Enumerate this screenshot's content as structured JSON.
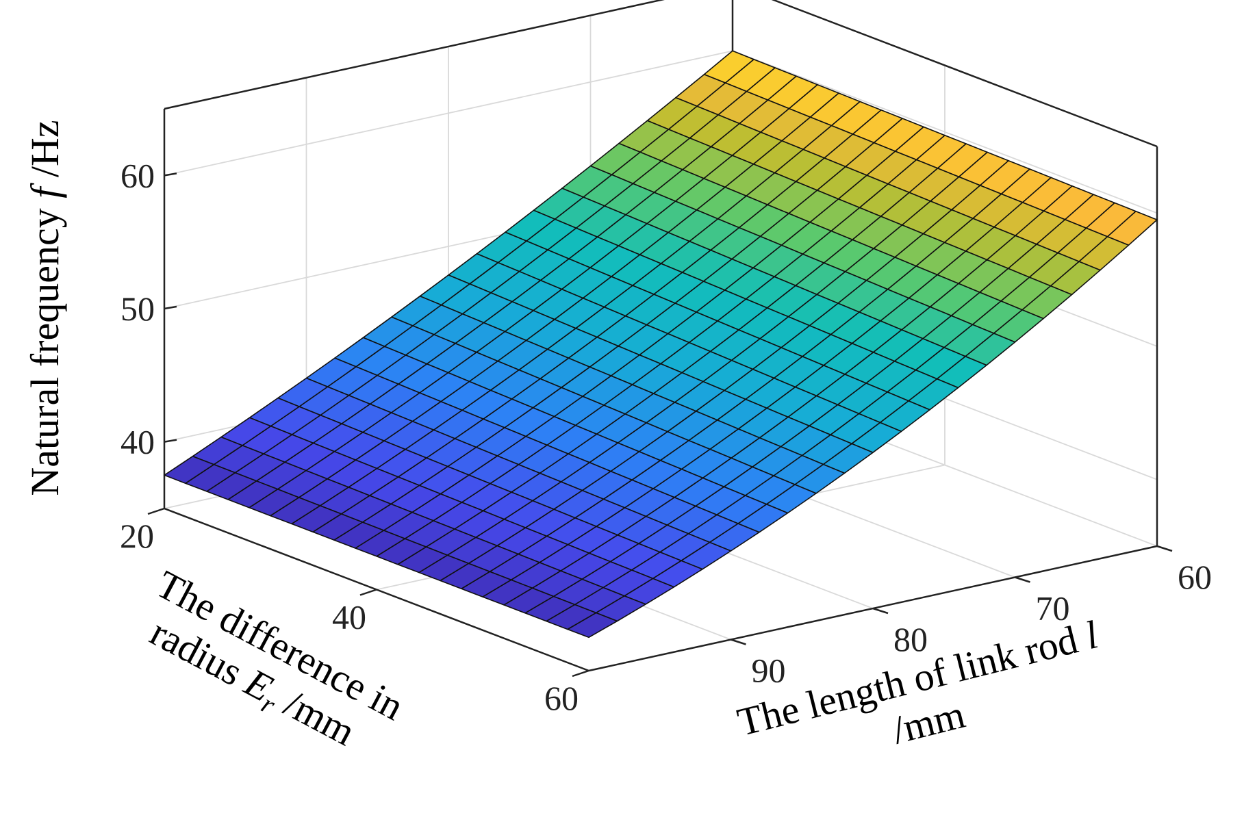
{
  "chart_data": {
    "type": "surface",
    "title": "",
    "zlabel": {
      "main": "Natural frequency ",
      "var": "f",
      "unit": " /Hz"
    },
    "xlabel": {
      "line1": "The difference in",
      "line2_main": "radius  ",
      "line2_var": "E",
      "line2_sub": "r",
      "line2_unit": " /mm"
    },
    "ylabel": {
      "line1_main": "The length of link rod ",
      "line1_var": "l",
      "line2": "/mm"
    },
    "x_axis": {
      "name": "Er",
      "range": [
        20,
        60
      ],
      "ticks": [
        20,
        40,
        60
      ],
      "tick_labels": [
        "20",
        "40",
        "60"
      ]
    },
    "y_axis": {
      "name": "l",
      "range": [
        60,
        100
      ],
      "ticks": [
        60,
        70,
        80,
        90
      ],
      "tick_labels": [
        "60",
        "70",
        "80",
        "90"
      ]
    },
    "z_axis": {
      "name": "f",
      "range": [
        35,
        65
      ],
      "ticks": [
        40,
        50,
        60
      ],
      "tick_labels": [
        "40",
        "50",
        "60"
      ]
    },
    "grid": true,
    "colormap": "parula",
    "mesh": {
      "nx": 21,
      "ny": 21
    },
    "surface_corners": [
      {
        "Er": 20,
        "l": 100,
        "f": 37.5
      },
      {
        "Er": 60,
        "l": 100,
        "f": 37.5
      },
      {
        "Er": 20,
        "l": 60,
        "f": 60.0
      },
      {
        "Er": 60,
        "l": 60,
        "f": 59.5
      }
    ]
  }
}
